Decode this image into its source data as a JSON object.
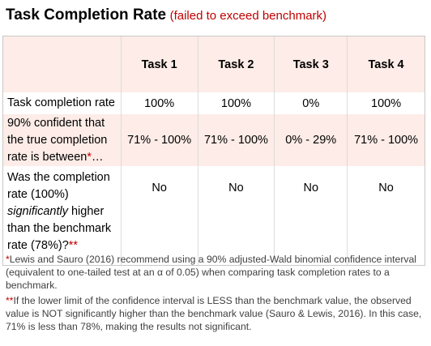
{
  "title": {
    "main": "Task Completion Rate",
    "sub": "(failed to exceed benchmark)"
  },
  "table": {
    "headers": [
      "",
      "Task 1",
      "Task 2",
      "Task 3",
      "Task 4"
    ],
    "rows": [
      {
        "label": "Task completion rate",
        "values": [
          "100%",
          "100%",
          "0%",
          "100%"
        ]
      },
      {
        "label_text": "90% confident that the true completion rate is between",
        "label_mark": "*",
        "label_end": "…",
        "values": [
          "71% - 100%",
          "71% - 100%",
          "0% - 29%",
          "71% - 100%"
        ]
      },
      {
        "label_before": "Was the completion rate (100%) ",
        "label_italic": "significantly",
        "label_after": " higher than the benchmark rate (78%)?",
        "label_mark": "**",
        "values": [
          "No",
          "No",
          "No",
          "No"
        ]
      }
    ]
  },
  "footnotes": [
    {
      "mark": "*",
      "text": "Lewis and Sauro (2016) recommend using a 90% adjusted-Wald binomial confidence interval (equivalent to one-tailed test at an α of 0.05) when comparing task completion rates to a benchmark."
    },
    {
      "mark": "**",
      "text": "If the lower limit of the confidence interval is LESS than the benchmark value, the observed value is NOT significantly higher than the benchmark value (Sauro & Lewis, 2016). In this case, 71% is less than 78%, making the results not significant."
    }
  ],
  "colors": {
    "accent_red": "#c00000",
    "row_shade": "#fdece7"
  }
}
